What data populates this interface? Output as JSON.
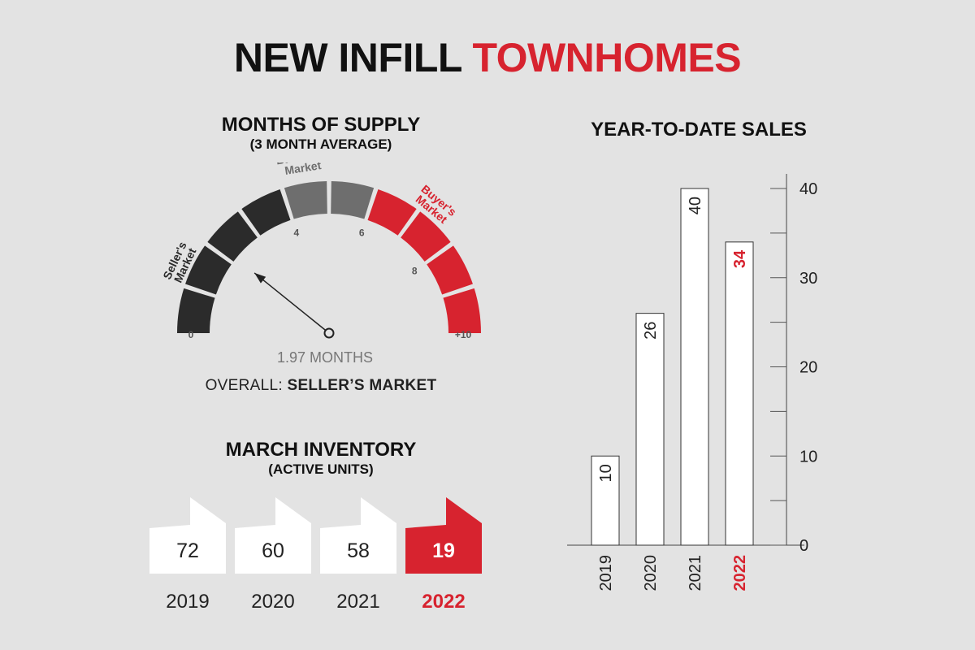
{
  "header": {
    "title_part1": "NEW INFILL ",
    "title_part2": "TOWNHOMES",
    "accent_color": "#d7232f"
  },
  "supply": {
    "title": "MONTHS OF SUPPLY",
    "subtitle": "(3 MONTH AVERAGE)",
    "reading": "1.97 MONTHS",
    "overall_label": "OVERALL: ",
    "overall_value": "SELLER’S MARKET"
  },
  "inventory": {
    "title": "MARCH INVENTORY",
    "subtitle": "(ACTIVE UNITS)"
  },
  "sales": {
    "title": "YEAR-TO-DATE SALES"
  },
  "chart_data": [
    {
      "type": "gauge",
      "title": "MONTHS OF SUPPLY",
      "subtitle": "(3 MONTH AVERAGE)",
      "min": 0,
      "max": 10,
      "value": 1.97,
      "value_label": "1.97 MONTHS",
      "tick_labels": [
        "0",
        "4",
        "6",
        "8",
        "+10"
      ],
      "tick_values": [
        0,
        4,
        6,
        8,
        10
      ],
      "segments": 10,
      "zones": [
        {
          "label_line1": "Seller's",
          "label_line2": "Market",
          "from": 0,
          "to": 4,
          "color": "#2b2b2b"
        },
        {
          "label_line1": "Balanced",
          "label_line2": "Market",
          "from": 4,
          "to": 6,
          "color": "#6e6e6e"
        },
        {
          "label_line1": "Buyer's",
          "label_line2": "Market",
          "from": 6,
          "to": 10,
          "color": "#d7232f"
        }
      ],
      "overall": "SELLER’S MARKET"
    },
    {
      "type": "bar",
      "title": "MARCH INVENTORY",
      "subtitle": "(ACTIVE UNITS)",
      "categories": [
        "2019",
        "2020",
        "2021",
        "2022"
      ],
      "values": [
        72,
        60,
        58,
        19
      ],
      "highlight": "2022",
      "colors": {
        "normal": "#ffffff",
        "highlight": "#d7232f"
      }
    },
    {
      "type": "bar",
      "title": "YEAR-TO-DATE SALES",
      "categories": [
        "2019",
        "2020",
        "2021",
        "2022"
      ],
      "values": [
        10,
        26,
        40,
        34
      ],
      "highlight": "2022",
      "yticks": [
        0,
        10,
        20,
        30,
        40
      ],
      "ylim": [
        0,
        40
      ],
      "orientation": "vertical-rotated-labels"
    }
  ]
}
